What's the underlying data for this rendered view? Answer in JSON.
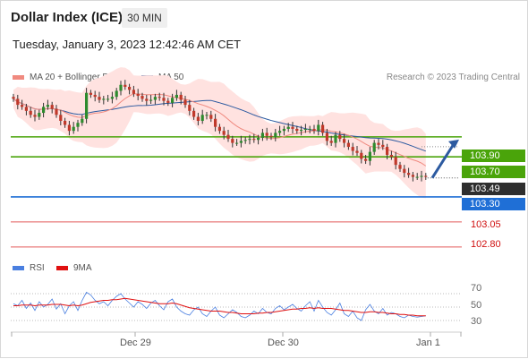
{
  "header": {
    "title": "Dollar Index (ICE)",
    "timeframe": "30 MIN",
    "datetime": "Tuesday, January 3, 2023 12:42:46 AM CET"
  },
  "footer": {
    "copyright": "Research © 2023 Trading Central"
  },
  "colors": {
    "support_level": "#e35a5a",
    "resistance_level": "#4aa40a",
    "pivot_level": "#1f6fd6",
    "up_candle": "#2e8b2e",
    "down_candle": "#c0392b",
    "band_fill": "#ffe2e0",
    "ma20": "#f08a80",
    "ma50": "#2c5aa0",
    "rsi": "#4a7fe0",
    "rsi_ma": "#e01010",
    "arrow": "#2c5aa0"
  },
  "chart_data": {
    "type": "candlestick",
    "title": "Dollar Index (ICE)",
    "timeframe": "30 MIN",
    "legend": [
      {
        "label": "MA 20 + Bollinger Bands",
        "color": "#f08a80"
      },
      {
        "label": "MA 50",
        "color": "#2c5aa0"
      }
    ],
    "x_ticks": [
      "Dec 29",
      "Dec 30",
      "Jan 1"
    ],
    "ylim": [
      102.7,
      104.4
    ],
    "last_price": 103.49,
    "last_price_label": "103.49",
    "levels": [
      {
        "value": 103.9,
        "label": "103.90",
        "type": "resistance"
      },
      {
        "value": 103.7,
        "label": "103.70",
        "type": "resistance"
      },
      {
        "value": 103.3,
        "label": "103.30",
        "type": "pivot"
      },
      {
        "value": 103.05,
        "label": "103.05",
        "type": "support"
      },
      {
        "value": 102.8,
        "label": "102.80",
        "type": "support"
      }
    ],
    "projection": {
      "from": 103.49,
      "to": 103.9,
      "direction": "up"
    },
    "close": [
      104.28,
      104.22,
      104.2,
      104.16,
      104.12,
      104.1,
      104.14,
      104.2,
      104.22,
      104.18,
      104.12,
      104.06,
      104.02,
      103.96,
      104.0,
      104.04,
      104.08,
      104.34,
      104.32,
      104.3,
      104.27,
      104.28,
      104.28,
      104.3,
      104.36,
      104.42,
      104.4,
      104.37,
      104.33,
      104.31,
      104.28,
      104.26,
      104.27,
      104.3,
      104.29,
      104.26,
      104.24,
      104.29,
      104.32,
      104.27,
      104.22,
      104.16,
      104.1,
      104.06,
      104.12,
      104.12,
      104.08,
      104.0,
      103.96,
      103.92,
      103.88,
      103.84,
      103.84,
      103.86,
      103.87,
      103.88,
      103.87,
      103.89,
      103.94,
      103.91,
      103.9,
      103.94,
      103.96,
      103.98,
      104.0,
      103.98,
      103.96,
      103.97,
      103.98,
      103.98,
      103.96,
      104.02,
      103.94,
      103.86,
      103.84,
      103.92,
      103.88,
      103.84,
      103.8,
      103.76,
      103.74,
      103.68,
      103.66,
      103.75,
      103.84,
      103.82,
      103.8,
      103.72,
      103.7,
      103.62,
      103.58,
      103.54,
      103.52,
      103.5,
      103.5,
      103.51,
      103.5
    ],
    "open": [
      104.3,
      104.28,
      104.22,
      104.2,
      104.16,
      104.12,
      104.1,
      104.14,
      104.2,
      104.22,
      104.18,
      104.12,
      104.06,
      104.02,
      103.96,
      104.0,
      104.04,
      104.08,
      104.34,
      104.32,
      104.3,
      104.27,
      104.28,
      104.28,
      104.3,
      104.36,
      104.42,
      104.4,
      104.37,
      104.33,
      104.31,
      104.28,
      104.26,
      104.27,
      104.3,
      104.29,
      104.26,
      104.24,
      104.29,
      104.32,
      104.27,
      104.22,
      104.16,
      104.1,
      104.06,
      104.12,
      104.12,
      104.08,
      104.0,
      103.96,
      103.92,
      103.88,
      103.84,
      103.84,
      103.86,
      103.87,
      103.88,
      103.87,
      103.89,
      103.94,
      103.91,
      103.9,
      103.94,
      103.96,
      103.98,
      104.0,
      103.98,
      103.96,
      103.97,
      103.98,
      103.98,
      103.96,
      104.02,
      103.94,
      103.86,
      103.84,
      103.92,
      103.88,
      103.84,
      103.8,
      103.76,
      103.74,
      103.68,
      103.66,
      103.75,
      103.84,
      103.82,
      103.8,
      103.72,
      103.7,
      103.62,
      103.58,
      103.54,
      103.52,
      103.5,
      103.5,
      103.51
    ],
    "rsi": {
      "legend": [
        "RSI",
        "9MA"
      ],
      "ticks": [
        "70",
        "50",
        "30"
      ],
      "rsi_values": [
        55,
        52,
        60,
        48,
        56,
        45,
        58,
        50,
        54,
        62,
        47,
        55,
        40,
        52,
        58,
        45,
        60,
        72,
        68,
        60,
        55,
        58,
        52,
        60,
        66,
        70,
        62,
        56,
        50,
        58,
        54,
        48,
        56,
        60,
        52,
        46,
        58,
        62,
        50,
        44,
        40,
        38,
        46,
        50,
        40,
        36,
        44,
        50,
        38,
        34,
        40,
        46,
        42,
        36,
        34,
        38,
        44,
        40,
        48,
        42,
        40,
        48,
        52,
        46,
        50,
        54,
        48,
        44,
        52,
        58,
        44,
        60,
        50,
        42,
        38,
        46,
        56,
        40,
        36,
        44,
        34,
        30,
        46,
        54,
        44,
        40,
        48,
        38,
        42,
        40,
        36,
        34,
        38,
        36,
        35,
        36,
        37
      ],
      "ma9_values": [
        52,
        52,
        53,
        53,
        53,
        52,
        53,
        53,
        53,
        54,
        54,
        54,
        53,
        52,
        53,
        52,
        53,
        55,
        57,
        58,
        59,
        60,
        60,
        61,
        61,
        62,
        63,
        62,
        61,
        60,
        59,
        58,
        57,
        56,
        55,
        55,
        55,
        56,
        55,
        53,
        51,
        49,
        48,
        47,
        46,
        45,
        44,
        44,
        44,
        43,
        42,
        42,
        41,
        40,
        40,
        40,
        40,
        41,
        41,
        42,
        42,
        43,
        44,
        45,
        46,
        47,
        47,
        48,
        48,
        49,
        48,
        49,
        48,
        48,
        48,
        47,
        46,
        45,
        45,
        44,
        43,
        42,
        42,
        43,
        43,
        42,
        42,
        41,
        40,
        40,
        39,
        39,
        38,
        38,
        37,
        37,
        37
      ]
    }
  }
}
